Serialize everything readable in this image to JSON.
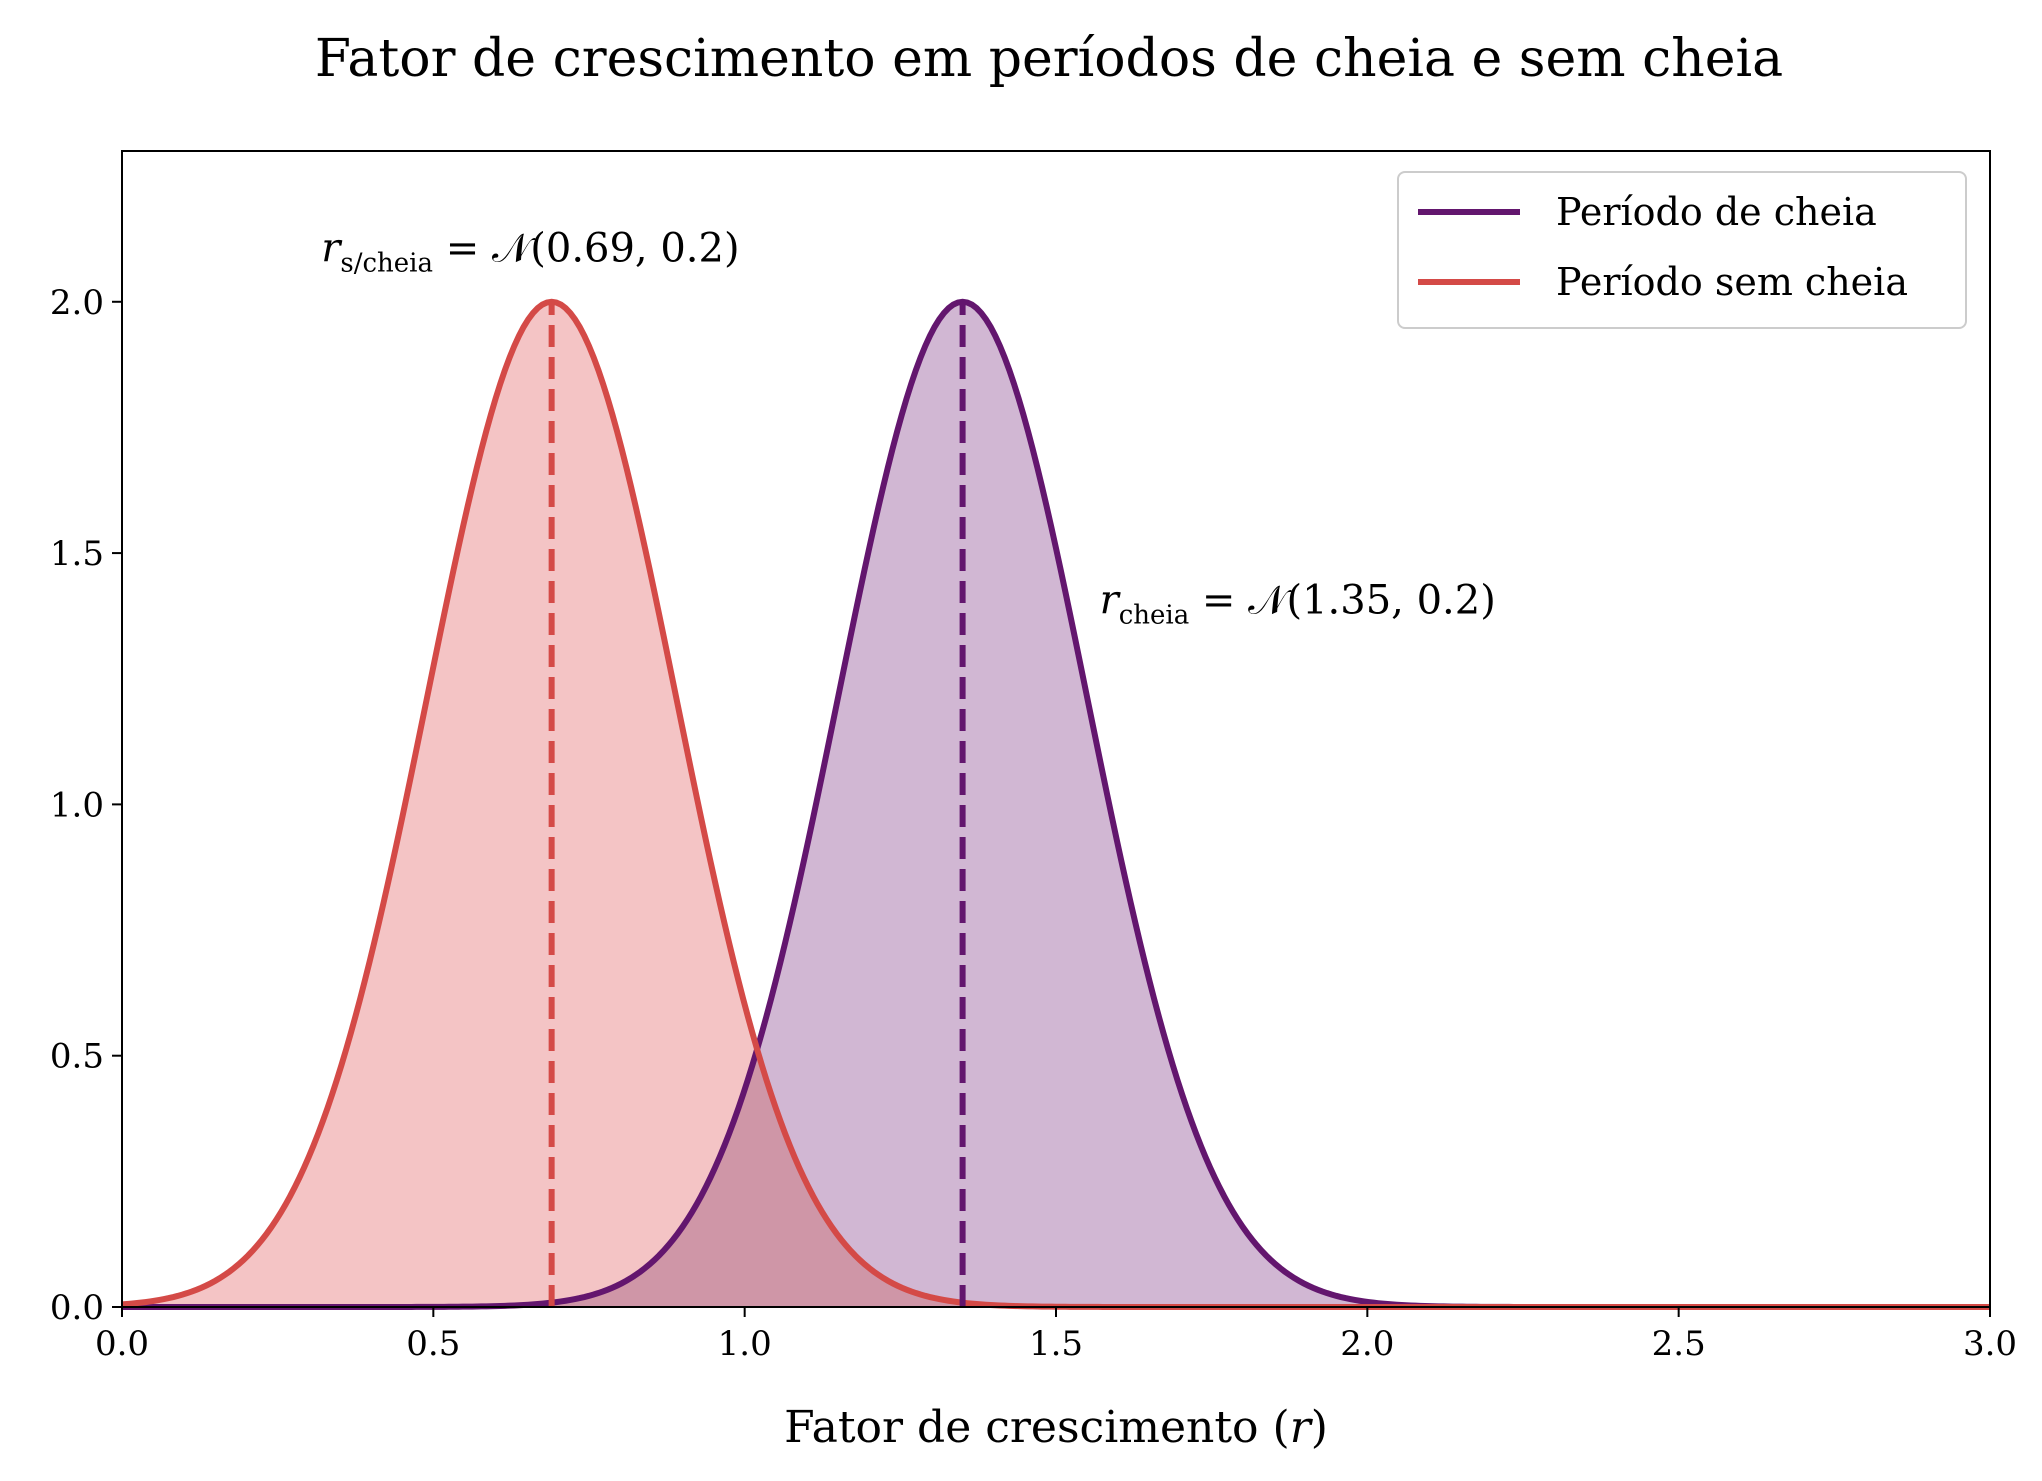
{
  "chart_data": {
    "type": "area",
    "title": "Fator de crescimento em períodos de cheia e sem cheia",
    "xlabel": "Fator de crescimento (r)",
    "ylabel": "",
    "xlim": [
      0.0,
      3.0
    ],
    "ylim": [
      0.0,
      2.3
    ],
    "x_ticks": [
      "0.0",
      "0.5",
      "1.0",
      "1.5",
      "2.0",
      "2.5",
      "3.0"
    ],
    "y_ticks": [
      "0.0",
      "0.5",
      "1.0",
      "1.5",
      "2.0"
    ],
    "grid": false,
    "legend_position": "top-right",
    "series": [
      {
        "name": "Período de cheia",
        "distribution": "normal",
        "mean": 1.35,
        "sd": 0.2,
        "color": "#63166e",
        "fill": "#d1b7d3",
        "annotation": {
          "var": "r",
          "sub": "cheia",
          "rest": " = 𝒩(1.35, 0.2)",
          "x": 1.57,
          "y": 1.38
        }
      },
      {
        "name": "Período sem cheia",
        "distribution": "normal",
        "mean": 0.69,
        "sd": 0.2,
        "color": "#d44a47",
        "fill": "#f4c4c5",
        "annotation": {
          "var": "r",
          "sub": "s/cheia",
          "rest": " = 𝒩(0.69, 0.2)",
          "x": 0.32,
          "y": 2.08
        }
      }
    ],
    "overlap_fill": "#cf96a7"
  }
}
